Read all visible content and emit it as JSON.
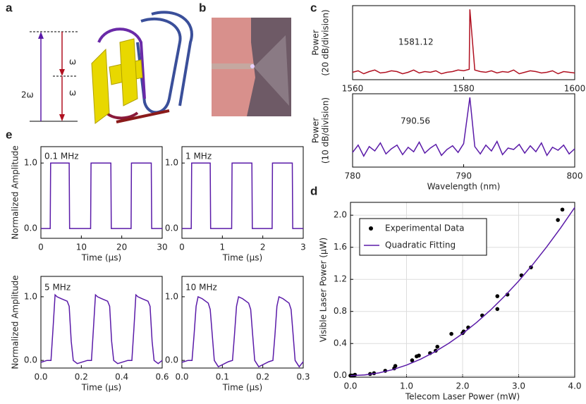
{
  "panel_labels": [
    "a",
    "b",
    "c",
    "d",
    "e"
  ],
  "diagram_a": {
    "labels": [
      "2ω",
      "ω",
      "ω"
    ]
  },
  "chart_data": [
    {
      "type": "line",
      "ylabel": [
        "Power",
        "(20 dB/division)"
      ],
      "annotation": "1581.12",
      "xlim": [
        1560,
        1600
      ],
      "xticks": [
        1560,
        1580,
        1600
      ],
      "ylim": [
        0,
        1
      ],
      "series": [
        {
          "color": "#b01020",
          "x": [
            1560,
            1561,
            1562,
            1563,
            1564,
            1565,
            1566,
            1567,
            1568,
            1569,
            1570,
            1571,
            1572,
            1573,
            1574,
            1575,
            1576,
            1577,
            1578,
            1579,
            1580,
            1581,
            1581.12,
            1582,
            1583,
            1584,
            1585,
            1586,
            1587,
            1588,
            1589,
            1590,
            1591,
            1592,
            1593,
            1594,
            1595,
            1596,
            1597,
            1598,
            1599,
            1600
          ],
          "values": [
            0.1,
            0.12,
            0.08,
            0.11,
            0.13,
            0.09,
            0.1,
            0.12,
            0.11,
            0.08,
            0.1,
            0.13,
            0.09,
            0.11,
            0.1,
            0.12,
            0.08,
            0.1,
            0.11,
            0.13,
            0.12,
            0.14,
            0.95,
            0.13,
            0.11,
            0.1,
            0.12,
            0.09,
            0.11,
            0.1,
            0.13,
            0.08,
            0.1,
            0.12,
            0.11,
            0.09,
            0.1,
            0.12,
            0.08,
            0.11,
            0.1,
            0.09
          ]
        }
      ]
    },
    {
      "type": "line",
      "ylabel": [
        "Power",
        "(10 dB/division)"
      ],
      "xlabel": "Wavelength (nm)",
      "annotation": "790.56",
      "xlim": [
        780,
        800
      ],
      "xticks": [
        780,
        790,
        800
      ],
      "ylim": [
        0,
        1
      ],
      "series": [
        {
          "color": "#5a1aa8",
          "x": [
            780,
            780.5,
            781,
            781.5,
            782,
            782.5,
            783,
            783.5,
            784,
            784.5,
            785,
            785.5,
            786,
            786.5,
            787,
            787.5,
            788,
            788.5,
            789,
            789.5,
            790,
            790.56,
            791,
            791.5,
            792,
            792.5,
            793,
            793.5,
            794,
            794.5,
            795,
            795.5,
            796,
            796.5,
            797,
            797.5,
            798,
            798.5,
            799,
            799.5,
            800
          ],
          "values": [
            0.2,
            0.3,
            0.15,
            0.28,
            0.22,
            0.33,
            0.18,
            0.25,
            0.3,
            0.17,
            0.27,
            0.21,
            0.34,
            0.19,
            0.26,
            0.31,
            0.16,
            0.24,
            0.29,
            0.2,
            0.32,
            0.95,
            0.28,
            0.18,
            0.3,
            0.22,
            0.35,
            0.17,
            0.26,
            0.24,
            0.31,
            0.19,
            0.29,
            0.21,
            0.33,
            0.16,
            0.27,
            0.23,
            0.3,
            0.18,
            0.25
          ]
        }
      ]
    },
    {
      "type": "scatter",
      "xlabel": "Telecom Laser Power (mW)",
      "ylabel": [
        "Visible Laser Power (μW)"
      ],
      "grid": true,
      "legend": "upper left",
      "xlim": [
        0,
        4
      ],
      "xticks": [
        {
          "value": 0,
          "label": "0.0"
        },
        {
          "value": 1,
          "label": "1.0"
        },
        {
          "value": 2,
          "label": "2.0"
        },
        {
          "value": 3,
          "label": "3.0"
        },
        {
          "value": 4,
          "label": "4.0"
        }
      ],
      "ylim": [
        -0.02,
        2.16
      ],
      "yticks": [
        {
          "value": 0,
          "label": "0.0"
        },
        0.4,
        0.8,
        1.2,
        1.6,
        {
          "value": 2,
          "label": "2.0"
        }
      ],
      "series": [
        {
          "name": "Experimental Data",
          "type": "scatter",
          "color": "#000000",
          "x": [
            0,
            0.02,
            0.05,
            0.08,
            0.35,
            0.42,
            0.62,
            0.78,
            0.8,
            1.1,
            1.18,
            1.22,
            1.42,
            1.52,
            1.55,
            1.8,
            2.0,
            2.02,
            2.1,
            2.35,
            2.62,
            2.62,
            2.8,
            3.05,
            3.22,
            3.7,
            3.78
          ],
          "values": [
            0,
            0,
            0,
            0.01,
            0.02,
            0.03,
            0.06,
            0.09,
            0.12,
            0.19,
            0.24,
            0.25,
            0.28,
            0.31,
            0.36,
            0.52,
            0.53,
            0.55,
            0.6,
            0.75,
            0.83,
            0.99,
            1.01,
            1.25,
            1.35,
            1.94,
            2.07
          ]
        },
        {
          "name": "Quadratic Fitting",
          "type": "line",
          "color": "#5a1aa8",
          "x": [
            0,
            0.25,
            0.5,
            0.75,
            1,
            1.25,
            1.5,
            1.75,
            2,
            2.25,
            2.5,
            2.75,
            3,
            3.25,
            3.5,
            3.75,
            4
          ],
          "values": [
            0,
            0.008,
            0.033,
            0.074,
            0.131,
            0.205,
            0.295,
            0.401,
            0.524,
            0.663,
            0.819,
            0.991,
            1.179,
            1.384,
            1.605,
            1.842,
            2.096
          ]
        }
      ]
    },
    {
      "type": "line",
      "annotation": "0.1 MHz",
      "ylabel": [
        "Normalized Amplitude"
      ],
      "xlabel": "Time (μs)",
      "xlim": [
        0,
        30
      ],
      "xticks": [
        0,
        10,
        20,
        30
      ],
      "ylim": [
        -0.15,
        1.25
      ],
      "yticks": [
        {
          "value": 0,
          "label": "0.0"
        },
        {
          "value": 1,
          "label": "1.0"
        }
      ],
      "series": [
        {
          "color": "#5a1aa8",
          "x": [
            0,
            2.3,
            2.4,
            7,
            7.1,
            12.3,
            12.4,
            17.3,
            17.4,
            22.3,
            22.4,
            27.3,
            27.4,
            30
          ],
          "values": [
            0,
            0,
            1,
            1,
            0,
            0,
            1,
            1,
            0,
            0,
            1,
            1,
            0,
            0
          ]
        }
      ]
    },
    {
      "type": "line",
      "annotation": "1 MHz",
      "xlabel": "Time (μs)",
      "xlim": [
        0,
        3
      ],
      "xticks": [
        0,
        1,
        2,
        3
      ],
      "ylim": [
        -0.15,
        1.25
      ],
      "yticks": [
        {
          "value": 0,
          "label": "0.0"
        },
        {
          "value": 1,
          "label": "1.0"
        }
      ],
      "series": [
        {
          "color": "#5a1aa8",
          "x": [
            0,
            0.23,
            0.24,
            0.7,
            0.71,
            1.23,
            1.24,
            1.73,
            1.74,
            2.23,
            2.24,
            2.73,
            2.74,
            3
          ],
          "values": [
            0,
            0,
            1,
            1,
            0,
            0,
            1,
            1,
            0,
            0,
            1,
            1,
            0,
            0
          ]
        }
      ]
    },
    {
      "type": "line",
      "annotation": "5 MHz",
      "ylabel": [
        "Normalized Amplitude"
      ],
      "xlabel": "Time (μs)",
      "xlim": [
        0,
        0.6
      ],
      "xticks": [
        {
          "value": 0,
          "label": "0.0"
        },
        0.2,
        0.4,
        0.6
      ],
      "ylim": [
        -0.12,
        1.32
      ],
      "yticks": [
        {
          "value": 0,
          "label": "0.0"
        },
        {
          "value": 1,
          "label": "1.0"
        }
      ],
      "series": [
        {
          "color": "#5a1aa8",
          "x": [
            0,
            0.03,
            0.05,
            0.06,
            0.07,
            0.08,
            0.1,
            0.13,
            0.14,
            0.15,
            0.16,
            0.18,
            0.23,
            0.25,
            0.26,
            0.27,
            0.28,
            0.3,
            0.33,
            0.34,
            0.35,
            0.36,
            0.38,
            0.43,
            0.45,
            0.46,
            0.47,
            0.48,
            0.5,
            0.53,
            0.54,
            0.55,
            0.56,
            0.58,
            0.6
          ],
          "values": [
            -0.03,
            0,
            0,
            0.5,
            1.03,
            1,
            0.97,
            0.93,
            0.85,
            0.3,
            0,
            -0.05,
            0,
            0,
            0.5,
            1.03,
            1,
            0.97,
            0.93,
            0.85,
            0.3,
            0,
            -0.05,
            0,
            0,
            0.5,
            1.03,
            1,
            0.97,
            0.93,
            0.85,
            0.3,
            0,
            -0.05,
            0
          ]
        }
      ]
    },
    {
      "type": "line",
      "annotation": "10 MHz",
      "xlabel": "Time (μs)",
      "xlim": [
        0,
        0.3
      ],
      "xticks": [
        {
          "value": 0,
          "label": "0.0"
        },
        0.1,
        0.2,
        0.3
      ],
      "ylim": [
        -0.12,
        1.32
      ],
      "yticks": [
        {
          "value": 0,
          "label": "0.0"
        },
        {
          "value": 1,
          "label": "1.0"
        }
      ],
      "series": [
        {
          "color": "#5a1aa8",
          "x": [
            0,
            0.015,
            0.025,
            0.03,
            0.035,
            0.04,
            0.05,
            0.065,
            0.07,
            0.075,
            0.08,
            0.09,
            0.115,
            0.125,
            0.13,
            0.135,
            0.14,
            0.15,
            0.165,
            0.17,
            0.175,
            0.18,
            0.19,
            0.215,
            0.225,
            0.23,
            0.235,
            0.24,
            0.25,
            0.265,
            0.27,
            0.275,
            0.28,
            0.29,
            0.3
          ],
          "values": [
            -0.03,
            0,
            0,
            0.4,
            0.85,
            1,
            0.97,
            0.9,
            0.8,
            0.4,
            0,
            -0.1,
            -0.02,
            0,
            0.4,
            0.85,
            1,
            0.97,
            0.9,
            0.8,
            0.4,
            0,
            -0.1,
            -0.02,
            0,
            0.4,
            0.85,
            1,
            0.97,
            0.9,
            0.8,
            0.4,
            0,
            -0.1,
            -0.02
          ]
        }
      ]
    }
  ]
}
